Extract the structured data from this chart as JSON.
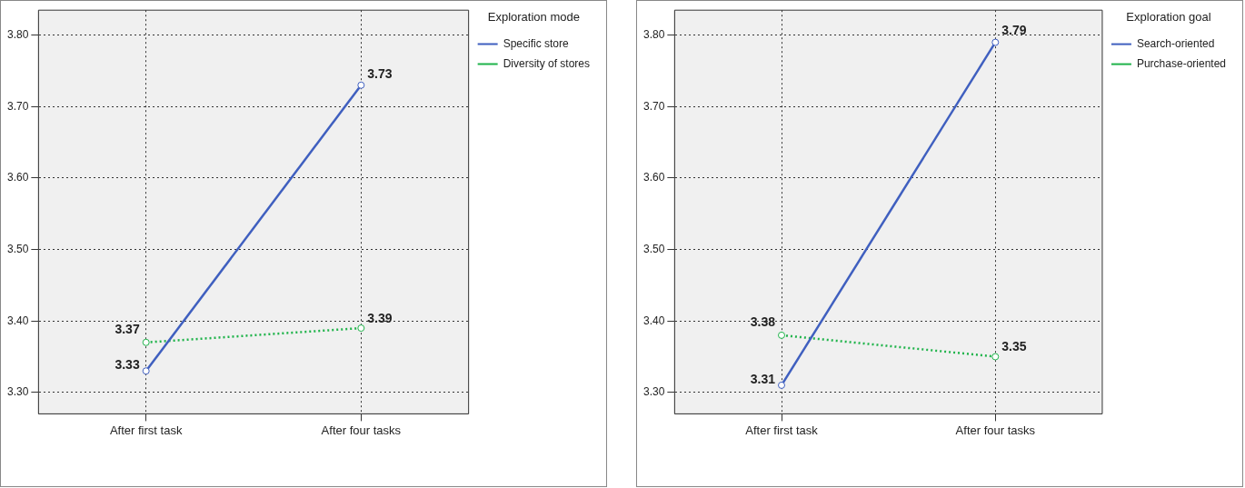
{
  "chart_data": [
    {
      "type": "line",
      "legend_title": "Exploration mode",
      "categories": [
        "After first task",
        "After four tasks"
      ],
      "series": [
        {
          "name": "Specific store",
          "color": "#3f5fbf",
          "values": [
            3.33,
            3.73
          ],
          "line_style": "solid"
        },
        {
          "name": "Diversity of stores",
          "color": "#1fb34a",
          "values": [
            3.37,
            3.39
          ],
          "line_style": "dotted"
        }
      ],
      "ylim": [
        3.27,
        3.835
      ],
      "yticks": [
        {
          "value": 3.3,
          "label": "3.30"
        },
        {
          "value": 3.4,
          "label": "3.40"
        },
        {
          "value": 3.5,
          "label": "3.50"
        },
        {
          "value": 3.6,
          "label": "3.60"
        },
        {
          "value": 3.7,
          "label": "3.70"
        },
        {
          "value": 3.8,
          "label": "3.80"
        }
      ],
      "grid": true,
      "legend": "top right",
      "marker": "circle",
      "data_labels": true
    },
    {
      "type": "line",
      "legend_title": "Exploration goal",
      "categories": [
        "After first task",
        "After four tasks"
      ],
      "series": [
        {
          "name": "Search-oriented",
          "color": "#3f5fbf",
          "values": [
            3.31,
            3.79
          ],
          "line_style": "solid"
        },
        {
          "name": "Purchase-oriented",
          "color": "#1fb34a",
          "values": [
            3.38,
            3.35
          ],
          "line_style": "dotted"
        }
      ],
      "ylim": [
        3.27,
        3.835
      ],
      "yticks": [
        {
          "value": 3.3,
          "label": "3.30"
        },
        {
          "value": 3.4,
          "label": "3.40"
        },
        {
          "value": 3.5,
          "label": "3.50"
        },
        {
          "value": 3.6,
          "label": "3.60"
        },
        {
          "value": 3.7,
          "label": "3.70"
        },
        {
          "value": 3.8,
          "label": "3.80"
        }
      ],
      "grid": true,
      "legend": "top right",
      "marker": "circle",
      "data_labels": true
    }
  ]
}
